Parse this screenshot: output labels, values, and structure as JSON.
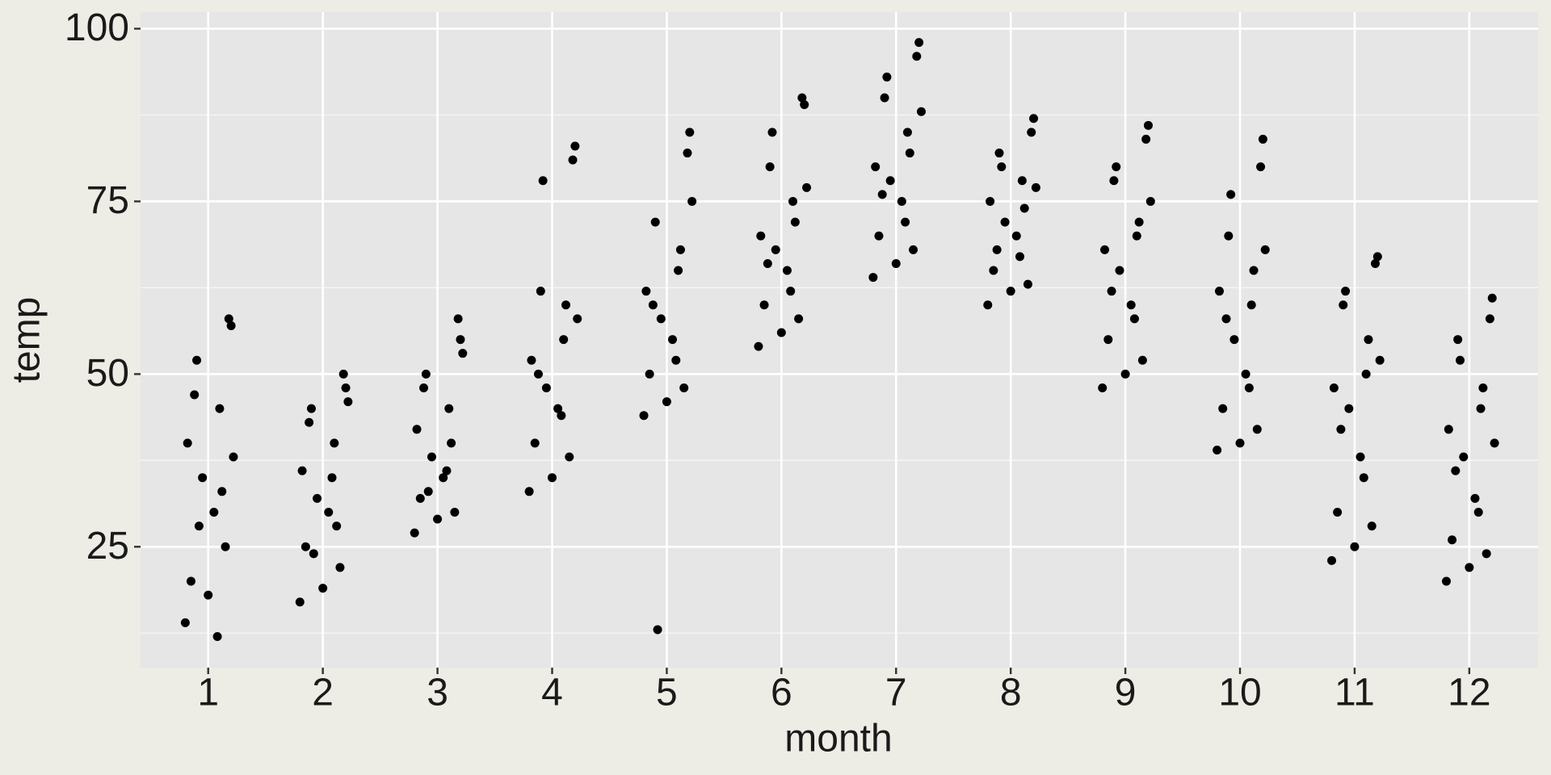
{
  "chart_data": {
    "type": "scatter",
    "x_label": "month",
    "y_label": "temp",
    "color": "#000000",
    "x": [
      0.8,
      1.2,
      0.85,
      1.1,
      0.95,
      1.15,
      0.9,
      1.05,
      1.18,
      0.82,
      1,
      1.12,
      0.88,
      1.08,
      0.92,
      1.22,
      1.8,
      2.2,
      1.85,
      2.1,
      1.95,
      2.15,
      1.9,
      2.05,
      2.18,
      1.82,
      2,
      2.12,
      1.88,
      2.08,
      1.92,
      2.22,
      2.8,
      3.2,
      2.85,
      3.1,
      2.95,
      3.15,
      2.9,
      3.05,
      3.18,
      2.82,
      3,
      3.12,
      2.88,
      3.08,
      2.92,
      3.22,
      3.8,
      4.2,
      3.85,
      4.1,
      3.95,
      4.15,
      3.9,
      4.05,
      4.18,
      3.82,
      4,
      4.12,
      3.88,
      4.08,
      3.92,
      4.22,
      4.8,
      5.2,
      4.85,
      5.1,
      4.95,
      5.15,
      4.9,
      5.05,
      5.18,
      4.82,
      5,
      5.12,
      4.88,
      5.08,
      4.92,
      5.22,
      5.8,
      6.2,
      5.85,
      6.1,
      5.95,
      6.15,
      5.9,
      6.05,
      6.18,
      5.82,
      6,
      6.12,
      5.88,
      6.08,
      5.92,
      6.22,
      6.8,
      7.2,
      6.85,
      7.1,
      6.95,
      7.15,
      6.9,
      7.05,
      7.18,
      6.82,
      7,
      7.12,
      6.88,
      7.08,
      6.92,
      7.22,
      7.8,
      8.2,
      7.85,
      8.1,
      7.95,
      8.15,
      7.9,
      8.05,
      8.18,
      7.82,
      8,
      8.12,
      7.88,
      8.08,
      7.92,
      8.22,
      8.8,
      9.2,
      8.85,
      9.1,
      8.95,
      9.15,
      8.9,
      9.05,
      9.18,
      8.82,
      9,
      9.12,
      8.88,
      9.08,
      8.92,
      9.22,
      9.8,
      10.2,
      9.85,
      10.1,
      9.95,
      10.15,
      9.9,
      10.05,
      10.18,
      9.82,
      10,
      10.12,
      9.88,
      10.08,
      9.92,
      10.22,
      10.8,
      11.2,
      10.85,
      11.1,
      10.95,
      11.15,
      10.9,
      11.05,
      11.18,
      10.82,
      11,
      11.12,
      10.88,
      11.08,
      10.92,
      11.22,
      11.8,
      12.2,
      11.85,
      12.1,
      11.95,
      12.15,
      11.9,
      12.05,
      12.18,
      11.82,
      12,
      12.12,
      11.88,
      12.08,
      11.92,
      12.22
    ],
    "values": [
      14,
      57,
      20,
      45,
      35,
      25,
      52,
      30,
      58,
      40,
      18,
      33,
      47,
      12,
      28,
      38,
      17,
      48,
      25,
      40,
      32,
      22,
      45,
      30,
      50,
      36,
      19,
      28,
      43,
      35,
      24,
      46,
      27,
      55,
      32,
      45,
      38,
      30,
      50,
      35,
      58,
      42,
      29,
      40,
      48,
      36,
      33,
      53,
      33,
      83,
      40,
      55,
      48,
      38,
      62,
      45,
      81,
      52,
      35,
      60,
      50,
      44,
      78,
      58,
      44,
      85,
      50,
      65,
      58,
      48,
      72,
      55,
      82,
      62,
      46,
      68,
      60,
      52,
      13,
      75,
      54,
      89,
      60,
      75,
      68,
      58,
      80,
      65,
      90,
      70,
      56,
      72,
      66,
      62,
      85,
      77,
      64,
      98,
      70,
      85,
      78,
      68,
      90,
      75,
      96,
      80,
      66,
      82,
      76,
      72,
      93,
      88,
      60,
      87,
      65,
      78,
      72,
      63,
      82,
      70,
      85,
      75,
      62,
      74,
      68,
      67,
      80,
      77,
      48,
      86,
      55,
      70,
      65,
      52,
      78,
      60,
      84,
      68,
      50,
      72,
      62,
      58,
      80,
      75,
      39,
      84,
      45,
      60,
      55,
      42,
      70,
      50,
      80,
      62,
      40,
      65,
      58,
      48,
      76,
      68,
      23,
      67,
      30,
      50,
      45,
      28,
      60,
      38,
      66,
      48,
      25,
      55,
      42,
      35,
      62,
      52,
      20,
      61,
      26,
      45,
      38,
      24,
      55,
      32,
      58,
      42,
      22,
      48,
      36,
      30,
      52,
      40
    ],
    "xlim": [
      0.41,
      12.6
    ],
    "ylim": [
      7.5,
      102.4
    ],
    "xticks": [
      1,
      2,
      3,
      4,
      5,
      6,
      7,
      8,
      9,
      10,
      11,
      12
    ],
    "yticks": [
      25,
      50,
      75,
      100
    ],
    "yminorticks": [
      12.5,
      37.5,
      62.5,
      87.5
    ],
    "grid": true
  }
}
